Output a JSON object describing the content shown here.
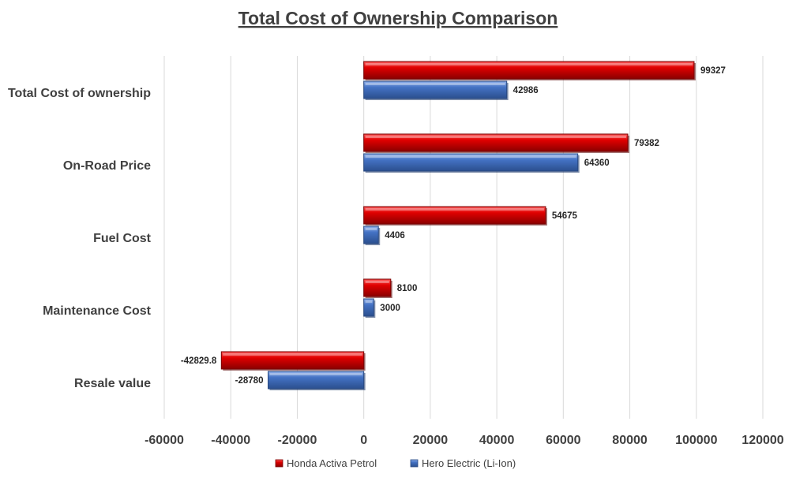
{
  "chart_data": {
    "type": "bar",
    "orientation": "horizontal",
    "title": "Total Cost of Ownership Comparison",
    "categories": [
      "Total Cost of ownership",
      "On-Road Price",
      "Fuel Cost",
      "Maintenance Cost",
      "Resale value"
    ],
    "series": [
      {
        "name": "Honda Activa Petrol",
        "color": "#c00000",
        "values": [
          99327,
          79382,
          54675,
          8100,
          -42829.8
        ],
        "labels": [
          "99327",
          "79382",
          "54675",
          "8100",
          "-42829.8"
        ]
      },
      {
        "name": "Hero Electric (Li-Ion)",
        "color": "#4472c4",
        "values": [
          42986,
          64360,
          4406,
          3000,
          -28780
        ],
        "labels": [
          "42986",
          "64360",
          "4406",
          "3000",
          "-28780"
        ]
      }
    ],
    "xlim": [
      -60000,
      120000
    ],
    "xticks": [
      -60000,
      -40000,
      -20000,
      0,
      20000,
      40000,
      60000,
      80000,
      100000,
      120000
    ],
    "xtick_labels": [
      "-60000",
      "-40000",
      "-20000",
      "0",
      "20000",
      "40000",
      "60000",
      "80000",
      "100000",
      "120000"
    ],
    "grid": true,
    "legend_position": "bottom"
  }
}
